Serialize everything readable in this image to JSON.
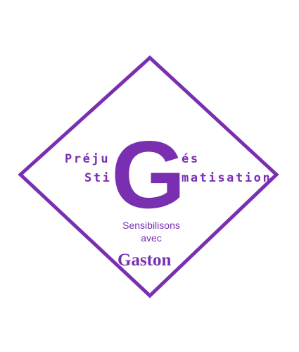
{
  "colors": {
    "purple": "#7a2fb0",
    "background": "#ffffff"
  },
  "logo": {
    "line1_left": "Préju",
    "line1_right": "és",
    "line2_left": "Sti",
    "line2_right": "matisation",
    "big_letter": "G",
    "tagline_line1": "Sensibilisons",
    "tagline_line2": "avec",
    "name": "Gaston"
  }
}
